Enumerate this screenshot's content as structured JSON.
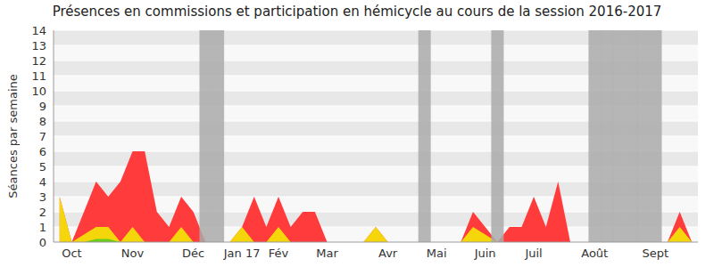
{
  "chart_data": {
    "type": "area",
    "title": "Présences en commissions et participation en hémicycle au cours de la session 2016-2017",
    "y_label": "Séances par semaine",
    "categories": [
      null,
      "Oct",
      null,
      null,
      null,
      null,
      "Nov",
      null,
      null,
      null,
      null,
      "Déc",
      null,
      null,
      null,
      "Jan 17",
      null,
      null,
      "Fév",
      null,
      null,
      null,
      "Mar",
      null,
      null,
      null,
      null,
      "Avr",
      null,
      null,
      null,
      "Mai",
      null,
      null,
      null,
      "Juin",
      null,
      null,
      null,
      "Juil",
      null,
      null,
      null,
      null,
      "Août",
      null,
      null,
      null,
      null,
      "Sept",
      null,
      null,
      null
    ],
    "series": [
      {
        "color": "#ff3b3b",
        "values": [
          3,
          0,
          2,
          4,
          3,
          4,
          6,
          6,
          2,
          1,
          3,
          2,
          0,
          0,
          0,
          1,
          3,
          1,
          3,
          1,
          2,
          2,
          0,
          0,
          0,
          0,
          1,
          0,
          0,
          0,
          0,
          0,
          0,
          0,
          2,
          1,
          0,
          1,
          1,
          3,
          1,
          4,
          0,
          0,
          0,
          0,
          0,
          0,
          0,
          0,
          0,
          2,
          0
        ]
      },
      {
        "color": "#f5d60a",
        "values": [
          3,
          0,
          0.5,
          1,
          1,
          0,
          1,
          0,
          0,
          0,
          1,
          0,
          0,
          0,
          0,
          1,
          0,
          0,
          1,
          0,
          0,
          0,
          0,
          0,
          0,
          0,
          1,
          0,
          0,
          0,
          0,
          0,
          0,
          0,
          1,
          0.5,
          0,
          0,
          0,
          0,
          0,
          0,
          0,
          0,
          0,
          0,
          0,
          0,
          0,
          0,
          0,
          1,
          0
        ]
      },
      {
        "color": "#6bcc1a",
        "values": [
          0,
          0,
          0,
          0.2,
          0.2,
          0,
          0,
          0,
          0,
          0,
          0,
          0,
          0,
          0,
          0,
          0,
          0,
          0,
          0,
          0,
          0,
          0,
          0,
          0,
          0,
          0,
          0,
          0,
          0,
          0,
          0,
          0,
          0,
          0,
          0,
          0,
          0,
          0,
          0,
          0,
          0,
          0,
          0,
          0,
          0,
          0,
          0,
          0,
          0,
          0,
          0,
          0,
          0
        ]
      }
    ],
    "vacation_weeks": [
      12,
      13,
      30,
      36,
      44,
      45,
      46,
      47,
      48,
      49
    ],
    "vacation_color": "#aaaaaa",
    "ylim": [
      0,
      14
    ],
    "yticks": [
      0,
      1,
      2,
      3,
      4,
      5,
      6,
      7,
      8,
      9,
      10,
      11,
      12,
      13,
      14
    ],
    "grid": true
  }
}
